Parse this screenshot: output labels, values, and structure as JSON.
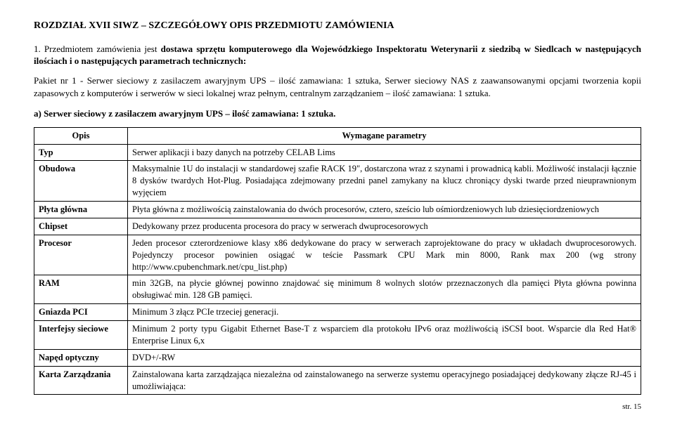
{
  "title": "ROZDZIAŁ XVII SIWZ – SZCZEGÓŁOWY OPIS  PRZEDMIOTU ZAMÓWIENIA",
  "para1_prefix": "1. Przedmiotem zamówienia jest ",
  "para1_bold": "dostawa sprzętu komputerowego dla Wojewódzkiego Inspektoratu Weterynarii z siedzibą w Siedlcach w następujących ilościach i o następujących parametrach technicznych:",
  "para2": "Pakiet nr 1 - Serwer sieciowy z zasilaczem awaryjnym UPS – ilość zamawiana: 1 sztuka, Serwer sieciowy NAS z zaawansowanymi opcjami tworzenia kopii zapasowych z komputerów i serwerów w sieci lokalnej wraz pełnym, centralnym zarządzaniem – ilość zamawiana: 1 sztuka.",
  "subheading": "a) Serwer sieciowy z zasilaczem awaryjnym UPS – ilość zamawiana: 1 sztuka.",
  "table": {
    "header": {
      "col1": "Opis",
      "col2": "Wymagane parametry"
    },
    "rows": [
      {
        "label": "Typ",
        "value": "Serwer aplikacji i bazy danych na potrzeby CELAB Lims"
      },
      {
        "label": "Obudowa",
        "value": "Maksymalnie 1U do instalacji w standardowej szafie RACK 19\", dostarczona wraz z szynami i prowadnicą kabli. Możliwość instalacji łącznie 8 dysków twardych Hot-Plug.\nPosiadająca zdejmowany przedni panel zamykany na klucz chroniący dyski twarde przed nieuprawnionym wyjęciem"
      },
      {
        "label": "Płyta główna",
        "value": "Płyta główna z możliwością zainstalowania do dwóch procesorów, cztero, sześcio lub ośmiordzeniowych lub dziesięciordzeniowych"
      },
      {
        "label": "Chipset",
        "value": "Dedykowany przez producenta procesora do pracy w serwerach dwuprocesorowych"
      },
      {
        "label": "Procesor",
        "value": "Jeden procesor czterordzeniowe klasy x86 dedykowane do pracy w serwerach zaprojektowane do pracy w układach dwuprocesorowych. Pojedynczy procesor powinien osiągać w teście Passmark CPU Mark min 8000, Rank max 200 (wg strony http://www.cpubenchmark.net/cpu_list.php)"
      },
      {
        "label": "RAM",
        "value": "min 32GB, na płycie głównej powinno znajdować się minimum 8 wolnych slotów przeznaczonych dla pamięci Płyta główna powinna obsługiwać min. 128 GB pamięci."
      },
      {
        "label": "Gniazda PCI",
        "value": "Minimum 3 złącz PCIe trzeciej generacji."
      },
      {
        "label": "Interfejsy sieciowe",
        "value": "Minimum 2 porty typu Gigabit Ethernet Base-T z wsparciem dla protokołu IPv6 oraz możliwością iSCSI boot. Wsparcie dla Red Hat® Enterprise Linux 6,x"
      },
      {
        "label": "Napęd optyczny",
        "value": "DVD+/-RW"
      },
      {
        "label": "Karta Zarządzania",
        "value": "Zainstalowana karta zarządzająca niezależna od zainstalowanego na serwerze systemu operacyjnego posiadającej dedykowany złącze RJ-45 i umożliwiająca:"
      }
    ]
  },
  "pageNum": "str. 15"
}
